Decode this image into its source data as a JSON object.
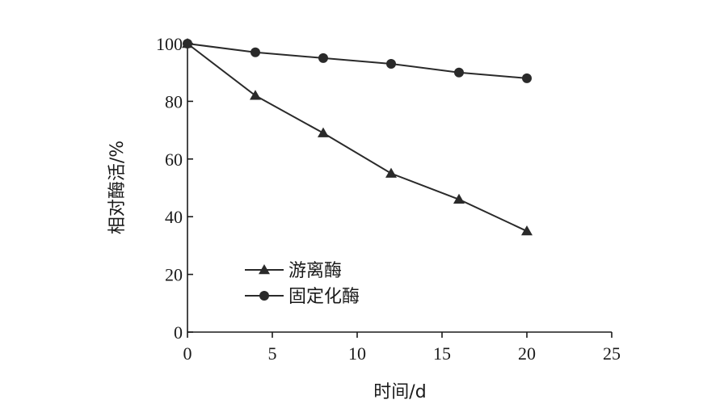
{
  "chart_data": {
    "type": "line",
    "title": "",
    "xlabel": "时间/d",
    "ylabel": "相对酶活/%",
    "xlim": [
      0,
      25
    ],
    "ylim": [
      0,
      100
    ],
    "xticks": [
      0,
      5,
      10,
      15,
      20,
      25
    ],
    "yticks": [
      0,
      20,
      40,
      60,
      80,
      100
    ],
    "grid": false,
    "legend_position": "lower-left",
    "series": [
      {
        "name": "游离酶",
        "marker": "triangle",
        "color": "#2a2a2a",
        "x": [
          0,
          4,
          8,
          12,
          16,
          20
        ],
        "y": [
          100,
          82,
          69,
          55,
          46,
          35
        ]
      },
      {
        "name": "固定化酶",
        "marker": "circle",
        "color": "#2a2a2a",
        "x": [
          0,
          4,
          8,
          12,
          16,
          20
        ],
        "y": [
          100,
          97,
          95,
          93,
          90,
          88
        ]
      }
    ]
  }
}
